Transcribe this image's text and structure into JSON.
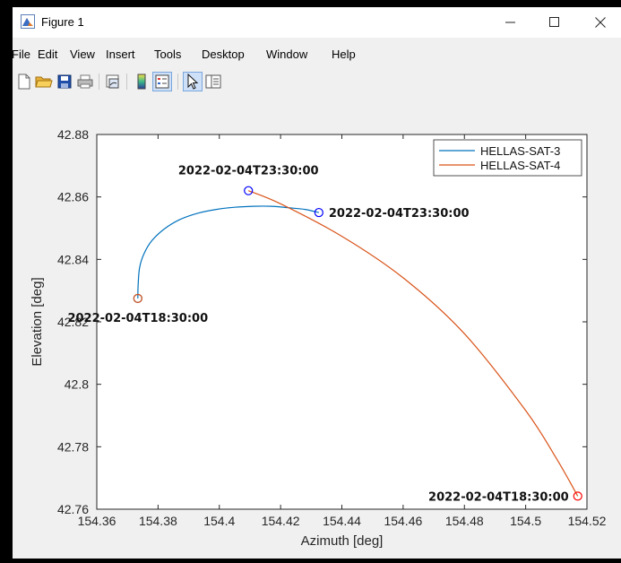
{
  "window": {
    "title": "Figure 1",
    "controls": {
      "minimize": "—",
      "maximize": "☐",
      "close": "✕"
    }
  },
  "menu": [
    "File",
    "Edit",
    "View",
    "Insert",
    "Tools",
    "Desktop",
    "Window",
    "Help"
  ],
  "toolbar_icons": [
    "new-figure-icon",
    "open-file-icon",
    "save-icon",
    "print-icon",
    "link-plot-icon",
    "colorbar-icon",
    "legend-icon",
    "pointer-icon",
    "property-editor-icon"
  ],
  "chart_data": {
    "type": "line",
    "xlabel": "Azimuth [deg]",
    "ylabel": "Elevation [deg]",
    "xlim": [
      154.36,
      154.52
    ],
    "ylim": [
      42.76,
      42.88
    ],
    "xticks": [
      "154.36",
      "154.38",
      "154.4",
      "154.42",
      "154.44",
      "154.46",
      "154.48",
      "154.5",
      "154.52"
    ],
    "yticks": [
      "42.76",
      "42.78",
      "42.8",
      "42.82",
      "42.84",
      "42.86",
      "42.88"
    ],
    "legend_position": "top-right",
    "series": [
      {
        "name": "HELLAS-SAT-3",
        "color": "#0072BD",
        "x": [
          154.3734,
          154.3735,
          154.374,
          154.3755,
          154.378,
          154.382,
          154.387,
          154.393,
          154.399,
          154.405,
          154.411,
          154.417,
          154.423,
          154.428,
          154.4325
        ],
        "y": [
          42.8275,
          42.832,
          42.8375,
          42.842,
          42.846,
          42.8497,
          42.8527,
          42.8548,
          42.856,
          42.8567,
          42.857,
          42.857,
          42.8565,
          42.856,
          42.855
        ]
      },
      {
        "name": "HELLAS-SAT-4",
        "color": "#D95319",
        "x": [
          154.4095,
          154.42,
          154.44,
          154.46,
          154.48,
          154.5,
          154.51,
          154.517
        ],
        "y": [
          42.862,
          42.8578,
          42.8474,
          42.8341,
          42.8162,
          42.7916,
          42.7763,
          42.7642
        ]
      }
    ],
    "markers": [
      {
        "x": 154.3734,
        "y": 42.8275,
        "color": "#0072BD"
      },
      {
        "x": 154.3734,
        "y": 42.8275,
        "color": "#D95319"
      },
      {
        "x": 154.4325,
        "y": 42.855,
        "color": "#0000FF"
      },
      {
        "x": 154.4095,
        "y": 42.862,
        "color": "#0000FF"
      },
      {
        "x": 154.517,
        "y": 42.7642,
        "color": "#FF0000"
      }
    ],
    "annotations": [
      {
        "text": "2022-02-04T23:30:00",
        "x": 154.4095,
        "y": 42.862,
        "place": "above"
      },
      {
        "text": "2022-02-04T23:30:00",
        "x": 154.4325,
        "y": 42.855,
        "place": "right"
      },
      {
        "text": "2022-02-04T18:30:00",
        "x": 154.3734,
        "y": 42.8275,
        "place": "below"
      },
      {
        "text": "2022-02-04T18:30:00",
        "x": 154.517,
        "y": 42.7642,
        "place": "left"
      }
    ]
  }
}
